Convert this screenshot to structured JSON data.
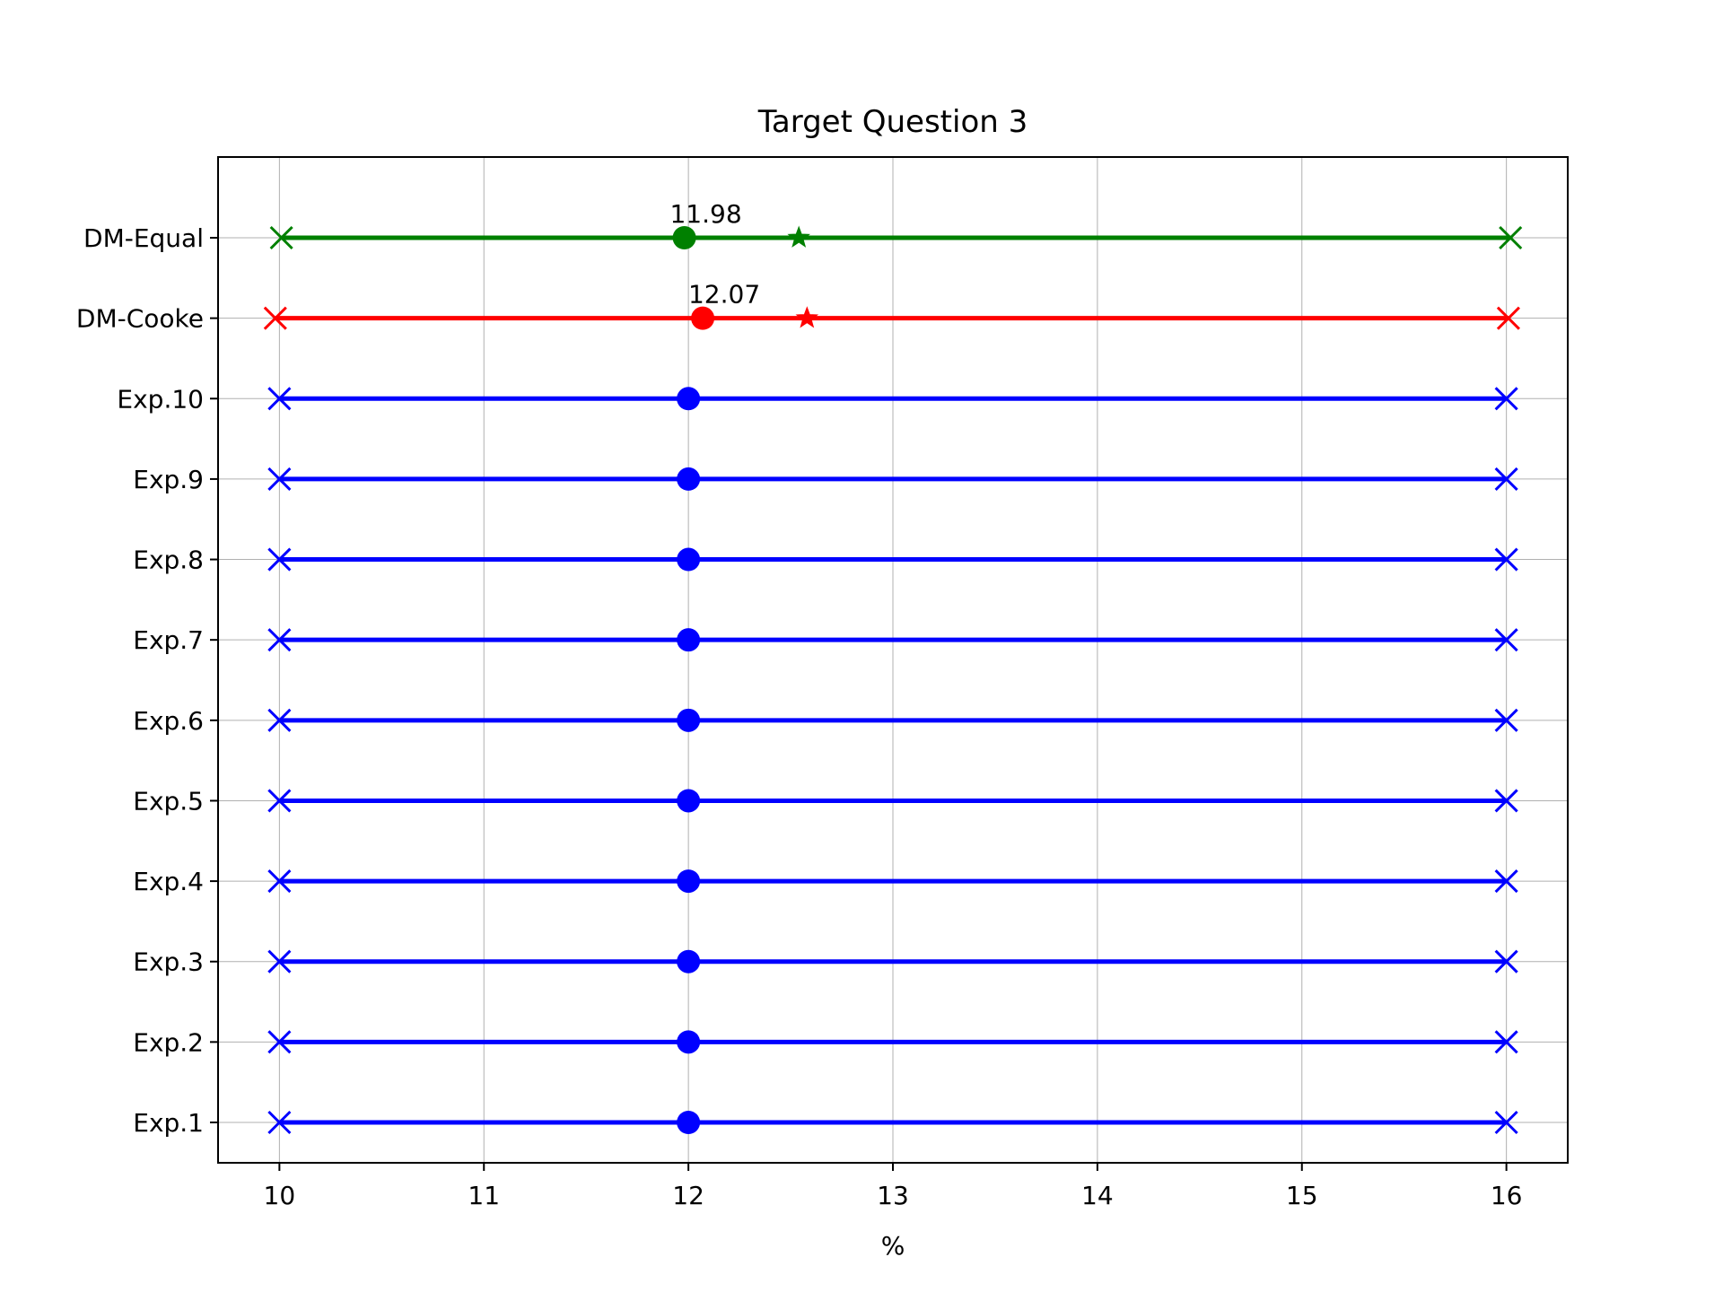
{
  "chart_data": {
    "type": "line",
    "title": "Target Question 3",
    "xlabel": "%",
    "ylabel": "",
    "xlim": [
      9.7,
      16.3
    ],
    "xticks": [
      10,
      11,
      12,
      13,
      14,
      15,
      16
    ],
    "xtick_labels": [
      "10",
      "11",
      "12",
      "13",
      "14",
      "15",
      "16"
    ],
    "grid": true,
    "legend": "none",
    "categories": [
      "Exp.1",
      "Exp.2",
      "Exp.3",
      "Exp.4",
      "Exp.5",
      "Exp.6",
      "Exp.7",
      "Exp.8",
      "Exp.9",
      "Exp.10",
      "DM-Cooke",
      "DM-Equal"
    ],
    "series": [
      {
        "category": "Exp.1",
        "color": "#0000ff",
        "low": 10,
        "median": 12,
        "high": 16
      },
      {
        "category": "Exp.2",
        "color": "#0000ff",
        "low": 10,
        "median": 12,
        "high": 16
      },
      {
        "category": "Exp.3",
        "color": "#0000ff",
        "low": 10,
        "median": 12,
        "high": 16
      },
      {
        "category": "Exp.4",
        "color": "#0000ff",
        "low": 10,
        "median": 12,
        "high": 16
      },
      {
        "category": "Exp.5",
        "color": "#0000ff",
        "low": 10,
        "median": 12,
        "high": 16
      },
      {
        "category": "Exp.6",
        "color": "#0000ff",
        "low": 10,
        "median": 12,
        "high": 16
      },
      {
        "category": "Exp.7",
        "color": "#0000ff",
        "low": 10,
        "median": 12,
        "high": 16
      },
      {
        "category": "Exp.8",
        "color": "#0000ff",
        "low": 10,
        "median": 12,
        "high": 16
      },
      {
        "category": "Exp.9",
        "color": "#0000ff",
        "low": 10,
        "median": 12,
        "high": 16
      },
      {
        "category": "Exp.10",
        "color": "#0000ff",
        "low": 10,
        "median": 12,
        "high": 16
      },
      {
        "category": "DM-Cooke",
        "color": "#ff0000",
        "low": 9.98,
        "median": 12.07,
        "mean": 12.58,
        "high": 16.01,
        "median_label": "12.07"
      },
      {
        "category": "DM-Equal",
        "color": "#008000",
        "low": 10.01,
        "median": 11.98,
        "mean": 12.54,
        "high": 16.02,
        "median_label": "11.98"
      }
    ]
  }
}
